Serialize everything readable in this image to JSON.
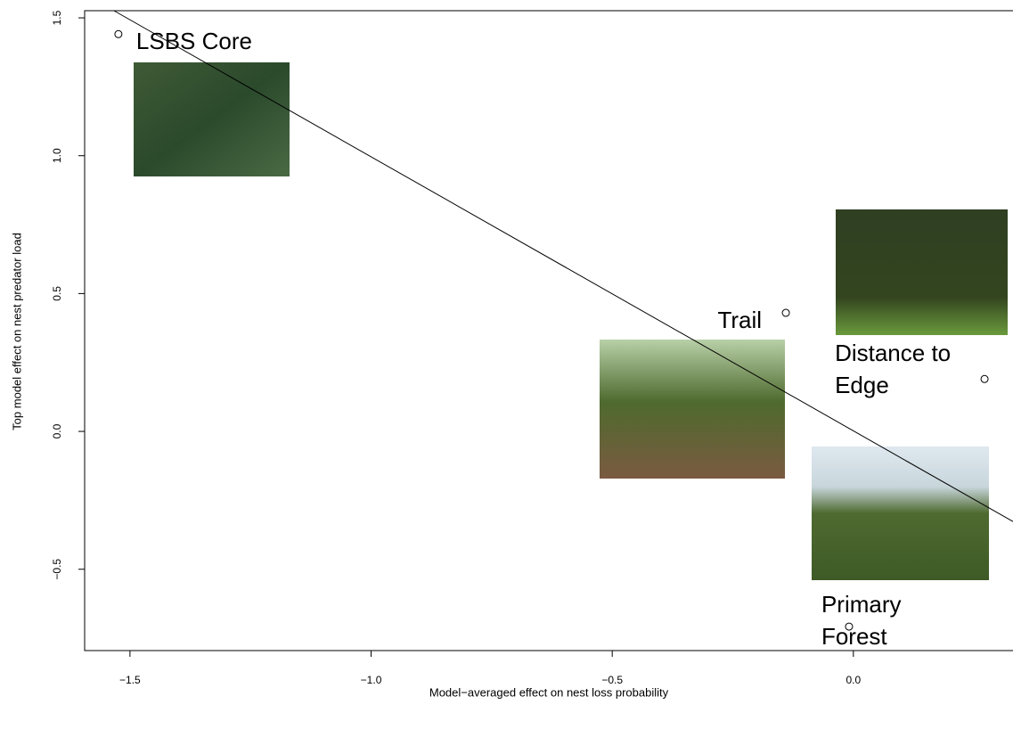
{
  "chart_data": {
    "type": "scatter",
    "x_label": "Model−averaged effect on nest loss probability",
    "y_label": "Top model effect on nest predator load",
    "x": [
      -1.524,
      -0.14,
      0.272,
      -0.009
    ],
    "values": [
      1.441,
      0.43,
      0.19,
      -0.708
    ],
    "point_labels": [
      [
        "LSBS Core"
      ],
      [
        "Trail"
      ],
      [
        "Distance to",
        "Edge"
      ],
      [
        "Primary",
        "Forest"
      ]
    ],
    "fit": {
      "slope": -0.994,
      "intercept": 0.002
    },
    "xlim": [
      -1.594,
      0.331
    ],
    "ylim": [
      -0.795,
      1.526
    ],
    "xticks": [
      {
        "value": -1.5,
        "label": "−1.5"
      },
      {
        "value": -1.0,
        "label": "−1.0"
      },
      {
        "value": -0.5,
        "label": "−0.5"
      },
      {
        "value": 0.0,
        "label": "0.0"
      }
    ],
    "yticks": [
      {
        "value": -0.5,
        "label": "−0.5"
      },
      {
        "value": 0.0,
        "label": "0.0"
      },
      {
        "value": 0.5,
        "label": "0.5"
      },
      {
        "value": 1.0,
        "label": "1.0"
      },
      {
        "value": 1.5,
        "label": "1.5"
      }
    ]
  }
}
